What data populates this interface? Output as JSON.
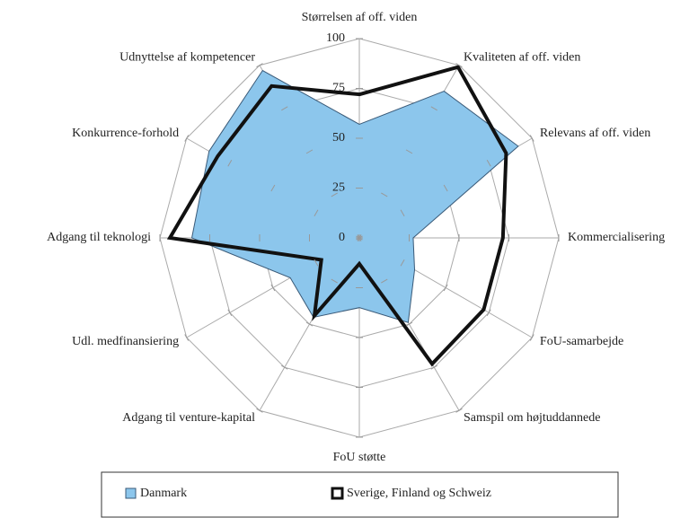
{
  "chart_data": {
    "type": "radar",
    "categories": [
      "Størrelsen af off. viden",
      "Kvaliteten af off. viden",
      "Relevans af off. viden",
      "Kommercialisering",
      "FoU-samarbejde",
      "Samspil om højtuddannede",
      "FoU støtte",
      "Adgang til venture-kapital",
      "Udl. medfinansiering",
      "Adgang til teknologi",
      "Konkurrence-forhold",
      "Udnyttelse af kompetencer"
    ],
    "series": [
      {
        "name": "Danmark",
        "color": "#8cc6ec",
        "values": [
          57,
          85,
          92,
          27,
          32,
          49,
          35,
          46,
          40,
          84,
          87,
          97
        ]
      },
      {
        "name": "Sverige, Finland og Schweiz",
        "color": "#111111",
        "values": [
          72,
          99,
          85,
          72,
          72,
          73,
          13,
          45,
          22,
          95,
          82,
          88
        ]
      }
    ],
    "ylim": [
      0,
      100
    ],
    "yticks": [
      0,
      25,
      50,
      75,
      100
    ],
    "grid": true,
    "legend": "bottom"
  }
}
